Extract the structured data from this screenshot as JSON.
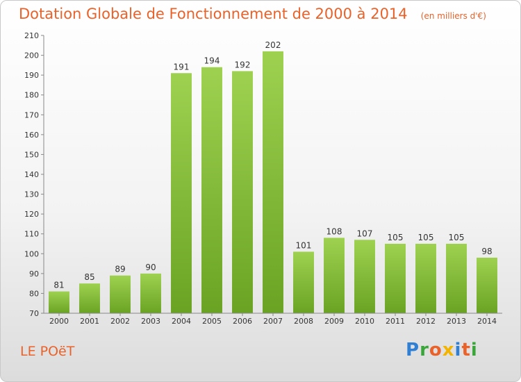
{
  "chart_data": {
    "type": "bar",
    "title": "Dotation Globale de Fonctionnement de 2000 à 2014",
    "subtitle": "(en milliers d'€)",
    "categories": [
      "2000",
      "2001",
      "2002",
      "2003",
      "2004",
      "2005",
      "2006",
      "2007",
      "2008",
      "2009",
      "2010",
      "2011",
      "2012",
      "2013",
      "2014"
    ],
    "values": [
      81,
      85,
      89,
      90,
      191,
      194,
      192,
      202,
      101,
      108,
      107,
      105,
      105,
      105,
      98
    ],
    "ylim": [
      70,
      210
    ],
    "yticks": [
      70,
      80,
      90,
      100,
      110,
      120,
      130,
      140,
      150,
      160,
      170,
      180,
      190,
      200,
      210
    ],
    "grid": false,
    "bar_color_top": "#9ed150",
    "bar_color_bottom": "#6aa323",
    "label_color": "#333333",
    "axis_color": "#888888"
  },
  "footer": {
    "commune": "LE POëT",
    "logo_letters": [
      "P",
      "r",
      "o",
      "x",
      "i",
      "t",
      "i"
    ]
  },
  "colors": {
    "title": "#e8622a",
    "logo_blue": "#2f7fd4",
    "logo_green": "#3aa63a",
    "logo_orange": "#e8622a",
    "logo_yellow": "#f2b400"
  }
}
